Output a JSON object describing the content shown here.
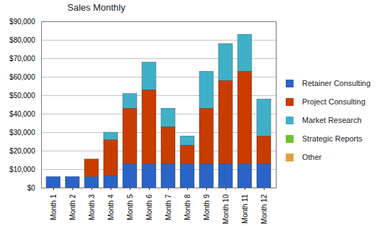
{
  "chart_data": {
    "type": "bar",
    "title": "Sales Monthly",
    "categories": [
      "Month 1",
      "Month 2",
      "Month 3",
      "Month 4",
      "Month 5",
      "Month 6",
      "Month 7",
      "Month 8",
      "Month 9",
      "Month 10",
      "Month 11",
      "Month 12"
    ],
    "series": [
      {
        "name": "Retainer Consulting",
        "color": "#2a64c8",
        "values": [
          6000,
          6000,
          6000,
          6500,
          13000,
          13000,
          13000,
          13000,
          13000,
          13000,
          13000,
          13000
        ]
      },
      {
        "name": "Project Consulting",
        "color": "#c83c00",
        "values": [
          0,
          0,
          9500,
          19500,
          30000,
          40000,
          20000,
          10000,
          30000,
          45000,
          50000,
          15000
        ]
      },
      {
        "name": "Market Research",
        "color": "#40b0c8",
        "values": [
          0,
          0,
          0,
          4000,
          8000,
          15000,
          10000,
          5000,
          20000,
          20000,
          20000,
          20000
        ]
      },
      {
        "name": "Strategic Reports",
        "color": "#70c030",
        "values": [
          0,
          0,
          0,
          0,
          0,
          0,
          0,
          0,
          0,
          0,
          0,
          0
        ]
      },
      {
        "name": "Other",
        "color": "#e0a040",
        "values": [
          0,
          0,
          0,
          0,
          0,
          0,
          0,
          0,
          0,
          0,
          0,
          0
        ]
      }
    ],
    "ylim": [
      0,
      90000
    ],
    "yticks": [
      {
        "value": 0,
        "label": "$0"
      },
      {
        "value": 10000,
        "label": "$10,000"
      },
      {
        "value": 20000,
        "label": "$20,000"
      },
      {
        "value": 30000,
        "label": "$30,000"
      },
      {
        "value": 40000,
        "label": "$40,000"
      },
      {
        "value": 50000,
        "label": "$50,000"
      },
      {
        "value": 60000,
        "label": "$60,000"
      },
      {
        "value": 70000,
        "label": "$70,000"
      },
      {
        "value": 80000,
        "label": "$80,000"
      },
      {
        "value": 90000,
        "label": "$90,000"
      }
    ],
    "stacked": true,
    "grid": true,
    "legend": "right"
  }
}
